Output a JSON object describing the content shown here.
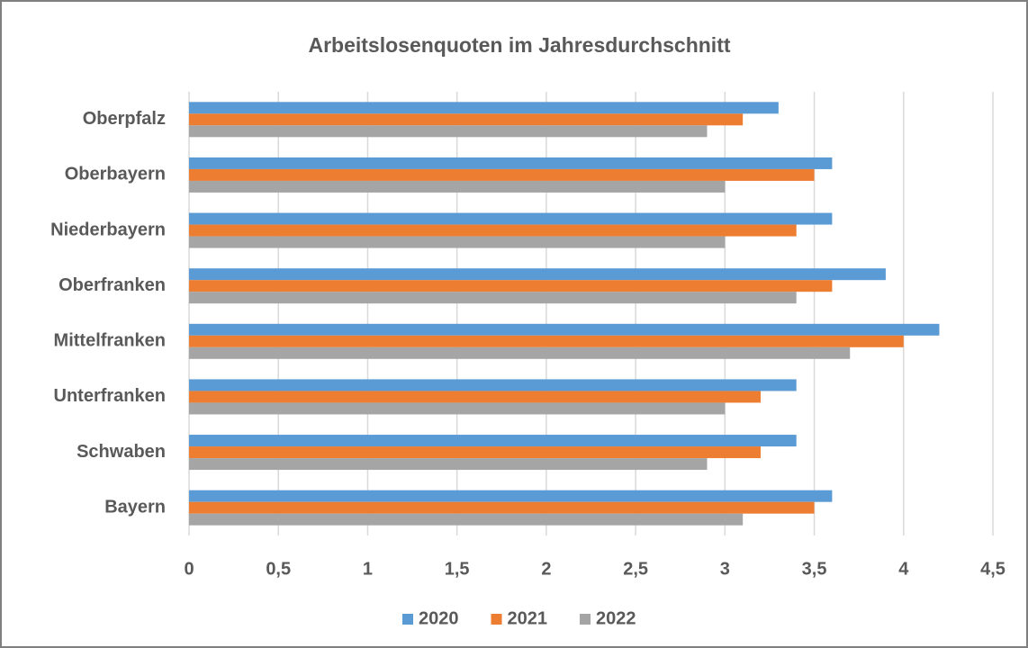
{
  "chart_data": {
    "type": "bar",
    "orientation": "horizontal",
    "title": "Arbeitslosenquoten im Jahresdurchschnitt",
    "categories": [
      "Oberpfalz",
      "Oberbayern",
      "Niederbayern",
      "Oberfranken",
      "Mittelfranken",
      "Unterfranken",
      "Schwaben",
      "Bayern"
    ],
    "series": [
      {
        "name": "2020",
        "color": "#5b9bd5",
        "values": [
          3.3,
          3.6,
          3.6,
          3.9,
          4.2,
          3.4,
          3.4,
          3.6
        ]
      },
      {
        "name": "2021",
        "color": "#ed7d31",
        "values": [
          3.1,
          3.5,
          3.4,
          3.6,
          4.0,
          3.2,
          3.2,
          3.5
        ]
      },
      {
        "name": "2022",
        "color": "#a5a5a5",
        "values": [
          2.9,
          3.0,
          3.0,
          3.4,
          3.7,
          3.0,
          2.9,
          3.1
        ]
      }
    ],
    "xlim": [
      0,
      4.5
    ],
    "xticks": [
      0,
      {
        "value": 0.5,
        "label": "0,5"
      },
      1,
      {
        "value": 1.5,
        "label": "1,5"
      },
      2,
      {
        "value": 2.5,
        "label": "2,5"
      },
      3,
      {
        "value": 3.5,
        "label": "3,5"
      },
      4,
      {
        "value": 4.5,
        "label": "4,5"
      }
    ],
    "grid": true,
    "legend": "bottom"
  }
}
